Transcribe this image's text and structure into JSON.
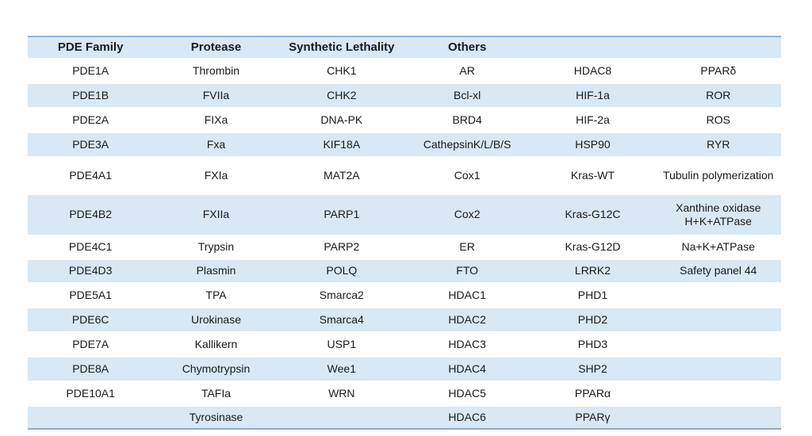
{
  "table": {
    "headers": [
      "PDE Family",
      "Protease",
      "Synthetic Lethality",
      "Others",
      "",
      ""
    ],
    "rows": [
      [
        "PDE1A",
        "Thrombin",
        "CHK1",
        "AR",
        "HDAC8",
        "PPARδ"
      ],
      [
        "PDE1B",
        "FVIIa",
        "CHK2",
        "Bcl-xl",
        "HIF-1a",
        "ROR"
      ],
      [
        "PDE2A",
        "FIXa",
        "DNA-PK",
        "BRD4",
        "HIF-2a",
        "ROS"
      ],
      [
        "PDE3A",
        "Fxa",
        "KIF18A",
        "CathepsinK/L/B/S",
        "HSP90",
        "RYR"
      ],
      [
        "PDE4A1",
        "FXIa",
        "MAT2A",
        "Cox1",
        "Kras-WT",
        "Tubulin polymerization"
      ],
      [
        "PDE4B2",
        "FXIIa",
        "PARP1",
        "Cox2",
        "Kras-G12C",
        "Xanthine oxidase\nH+K+ATPase"
      ],
      [
        "PDE4C1",
        "Trypsin",
        "PARP2",
        "ER",
        "Kras-G12D",
        "Na+K+ATPase"
      ],
      [
        "PDE4D3",
        "Plasmin",
        "POLQ",
        "FTO",
        "LRRK2",
        "Safety panel 44"
      ],
      [
        "PDE5A1",
        "TPA",
        "Smarca2",
        "HDAC1",
        "PHD1",
        ""
      ],
      [
        "PDE6C",
        "Urokinase",
        "Smarca4",
        "HDAC2",
        "PHD2",
        ""
      ],
      [
        "PDE7A",
        "Kallikern",
        "USP1",
        "HDAC3",
        "PHD3",
        ""
      ],
      [
        "PDE8A",
        "Chymotrypsin",
        "Wee1",
        "HDAC4",
        "SHP2",
        ""
      ],
      [
        "PDE10A1",
        "TAFIa",
        "WRN",
        "HDAC5",
        "PPARα",
        ""
      ],
      [
        "",
        "Tyrosinase",
        "",
        "HDAC6",
        "PPARγ",
        ""
      ]
    ],
    "colors": {
      "stripe": "#D8E8F5",
      "top_border": "#8FB4D6",
      "bottom_border": "#8FABC2",
      "text": "#1A1A1A"
    }
  }
}
